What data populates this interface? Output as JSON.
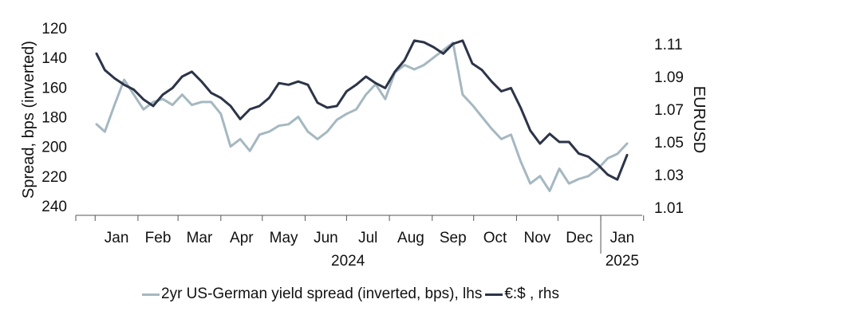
{
  "chart_data": {
    "type": "line",
    "title": "",
    "left_axis": {
      "label": "Spread, bps (inverted)",
      "range": [
        120,
        240
      ],
      "inverted": true,
      "ticks": [
        "120",
        "140",
        "160",
        "180",
        "200",
        "220",
        "240"
      ]
    },
    "right_axis": {
      "label": "EURUSD",
      "range": [
        1.0,
        1.12
      ],
      "ticks": [
        "1.11",
        "1.09",
        "1.07",
        "1.05",
        "1.03",
        "1.01"
      ]
    },
    "x_axis": {
      "months": [
        "Jan",
        "Feb",
        "Mar",
        "Apr",
        "May",
        "Jun",
        "Jul",
        "Aug",
        "Sep",
        "Oct",
        "Nov",
        "Dec",
        "Jan"
      ],
      "years": [
        "2024",
        "2025"
      ]
    },
    "grid": false,
    "legend_position": "bottom",
    "series": [
      {
        "name": "2yr US-German yield spread (inverted, bps), lhs",
        "axis": "left",
        "color": "#a5b8c1",
        "x": [
          "2024-01-02",
          "2024-01-08",
          "2024-01-15",
          "2024-01-22",
          "2024-01-29",
          "2024-02-05",
          "2024-02-12",
          "2024-02-19",
          "2024-02-26",
          "2024-03-04",
          "2024-03-11",
          "2024-03-18",
          "2024-03-25",
          "2024-04-01",
          "2024-04-08",
          "2024-04-15",
          "2024-04-22",
          "2024-04-29",
          "2024-05-06",
          "2024-05-13",
          "2024-05-20",
          "2024-05-27",
          "2024-06-03",
          "2024-06-10",
          "2024-06-17",
          "2024-06-24",
          "2024-07-01",
          "2024-07-08",
          "2024-07-15",
          "2024-07-22",
          "2024-07-29",
          "2024-08-05",
          "2024-08-12",
          "2024-08-19",
          "2024-08-26",
          "2024-09-02",
          "2024-09-09",
          "2024-09-16",
          "2024-09-23",
          "2024-09-30",
          "2024-10-07",
          "2024-10-14",
          "2024-10-21",
          "2024-10-28",
          "2024-11-04",
          "2024-11-11",
          "2024-11-18",
          "2024-11-25",
          "2024-12-02",
          "2024-12-09",
          "2024-12-16",
          "2024-12-23",
          "2024-12-30",
          "2025-01-06",
          "2025-01-13",
          "2025-01-20"
        ],
        "values": [
          185,
          190,
          172,
          155,
          165,
          175,
          170,
          168,
          172,
          165,
          172,
          170,
          170,
          178,
          200,
          195,
          203,
          192,
          190,
          186,
          185,
          180,
          190,
          195,
          190,
          182,
          178,
          175,
          165,
          158,
          168,
          150,
          145,
          148,
          145,
          140,
          135,
          130,
          165,
          172,
          180,
          188,
          195,
          192,
          210,
          225,
          220,
          230,
          215,
          225,
          222,
          220,
          215,
          208,
          205,
          198
        ]
      },
      {
        "name": "€:$ , rhs",
        "axis": "right",
        "color": "#2c3448",
        "x": [
          "2024-01-02",
          "2024-01-08",
          "2024-01-15",
          "2024-01-22",
          "2024-01-29",
          "2024-02-05",
          "2024-02-12",
          "2024-02-19",
          "2024-02-26",
          "2024-03-04",
          "2024-03-11",
          "2024-03-18",
          "2024-03-25",
          "2024-04-01",
          "2024-04-08",
          "2024-04-15",
          "2024-04-22",
          "2024-04-29",
          "2024-05-06",
          "2024-05-13",
          "2024-05-20",
          "2024-05-27",
          "2024-06-03",
          "2024-06-10",
          "2024-06-17",
          "2024-06-24",
          "2024-07-01",
          "2024-07-08",
          "2024-07-15",
          "2024-07-22",
          "2024-07-29",
          "2024-08-05",
          "2024-08-12",
          "2024-08-19",
          "2024-08-26",
          "2024-09-02",
          "2024-09-09",
          "2024-09-16",
          "2024-09-23",
          "2024-09-30",
          "2024-10-07",
          "2024-10-14",
          "2024-10-21",
          "2024-10-28",
          "2024-11-04",
          "2024-11-11",
          "2024-11-18",
          "2024-11-25",
          "2024-12-02",
          "2024-12-09",
          "2024-12-16",
          "2024-12-23",
          "2024-12-30",
          "2025-01-06",
          "2025-01-13",
          "2025-01-20"
        ],
        "values": [
          1.104,
          1.094,
          1.089,
          1.085,
          1.082,
          1.076,
          1.072,
          1.079,
          1.083,
          1.09,
          1.093,
          1.087,
          1.08,
          1.077,
          1.072,
          1.064,
          1.07,
          1.072,
          1.077,
          1.086,
          1.085,
          1.087,
          1.085,
          1.074,
          1.071,
          1.072,
          1.081,
          1.085,
          1.09,
          1.086,
          1.083,
          1.093,
          1.1,
          1.112,
          1.111,
          1.108,
          1.104,
          1.11,
          1.112,
          1.098,
          1.094,
          1.087,
          1.081,
          1.083,
          1.071,
          1.057,
          1.049,
          1.055,
          1.05,
          1.05,
          1.043,
          1.041,
          1.036,
          1.03,
          1.027,
          1.042
        ]
      }
    ]
  }
}
